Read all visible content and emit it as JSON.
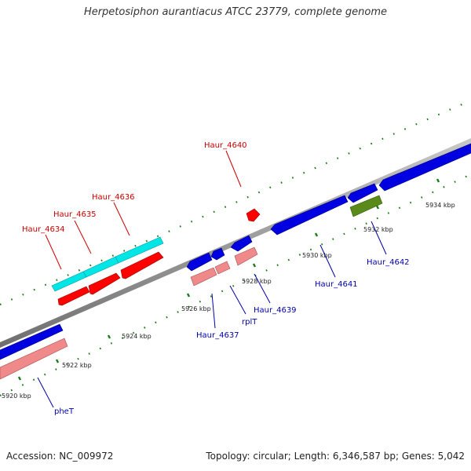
{
  "title": "Herpetosiphon aurantiacus ATCC 23779, complete genome",
  "footer": {
    "accession": "Accession: NC_009972",
    "summary": "Topology: circular; Length: 6,346,587 bp; Genes: 5,042"
  },
  "ticks": [
    "5920 kbp",
    "5922 kbp",
    "5924 kbp",
    "5926 kbp",
    "5928 kbp",
    "5930 kbp",
    "5932 kbp",
    "5934 kbp"
  ],
  "genes_top": [
    "Haur_4634",
    "Haur_4635",
    "Haur_4636",
    "Haur_4640"
  ],
  "genes_bottom": [
    "pheT",
    "Haur_4637",
    "rplT",
    "Haur_4639",
    "Haur_4641",
    "Haur_4642"
  ],
  "colors": {
    "forward_gene": "#ff0000",
    "forward_cds": "#00e5e5",
    "reverse_gene": "#0000e0",
    "reverse_cds": "#f08a8a",
    "other_feature": "#5a8a1a",
    "backbone": "#888888",
    "tick_marks": "#1a7a1a",
    "label_top": "#cc0000",
    "label_bottom": "#0000aa"
  }
}
